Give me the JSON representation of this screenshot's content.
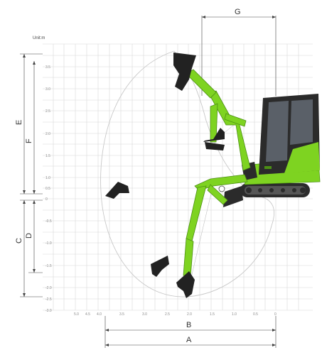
{
  "unit_label": "Unit:m",
  "dimension_labels": {
    "A": "A",
    "B": "B",
    "C": "C",
    "D": "D",
    "E": "E",
    "F": "F",
    "G": "G"
  },
  "y_ticks": [
    "3.5",
    "3.0",
    "2.5",
    "2.0",
    "1.5",
    "1.0",
    "0.5",
    "0",
    "-0.5",
    "-1.0",
    "-1.5",
    "-2.0",
    "-2.5",
    "-3.0"
  ],
  "x_ticks": [
    "5.0",
    "4.5",
    "4.0",
    "3.5",
    "3.0",
    "2.5",
    "2.0",
    "1.5",
    "1.0",
    "0.5",
    "0"
  ],
  "colors": {
    "machine_green": "#7ed321",
    "machine_green_dark": "#4c8f14",
    "bucket": "#222222",
    "cab_glass": "#3a3f46",
    "track": "#2b2b2b",
    "grid": "#d7d7d7",
    "envelope": "#c8c8c8"
  },
  "icons": [
    "excavator-cab",
    "crawler-track",
    "boom-arm",
    "bucket"
  ]
}
